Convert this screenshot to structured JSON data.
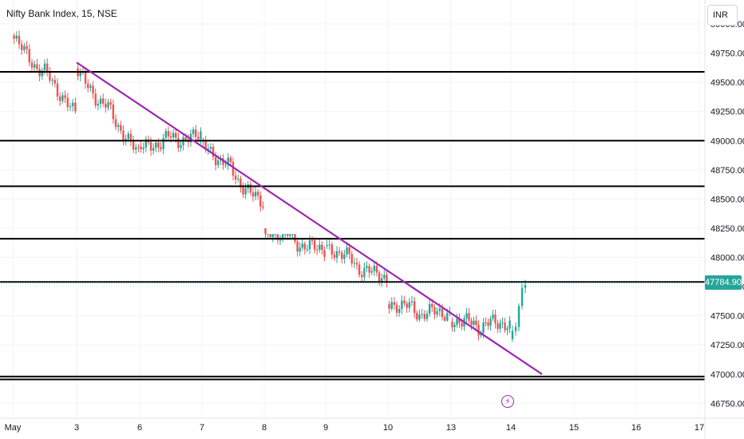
{
  "header": {
    "title": "Nifty Bank Index, 15, NSE",
    "currency": "INR"
  },
  "colors": {
    "up": "#26a69a",
    "down": "#ef5350",
    "trendline": "#9c27b0",
    "level_line": "#000000",
    "grid": "#f0f3fa",
    "axis_text": "#131722",
    "price_badge": "#26a69a"
  },
  "event_icon": "lightning-bolt-icon",
  "chart_data": {
    "type": "candlestick",
    "title": "Nifty Bank Index, 15, NSE",
    "y_axis_position": "right",
    "ylim": [
      46650,
      50000
    ],
    "y_ticks": [
      "50000.00",
      "49750.00",
      "49500.00",
      "49250.00",
      "49000.00",
      "48750.00",
      "48500.00",
      "48250.00",
      "48000.00",
      "47750.00",
      "47500.00",
      "47250.00",
      "47000.00",
      "46750.00"
    ],
    "x_tick_labels": [
      "May",
      "3",
      "6",
      "7",
      "8",
      "9",
      "10",
      "13",
      "14",
      "15",
      "16",
      "17"
    ],
    "last_price": "47784.90",
    "last_price_value": 47784.9,
    "grid": true,
    "horizontal_levels": [
      49590,
      49000,
      48610,
      48160,
      47790,
      46980,
      46955
    ],
    "trendline": {
      "start": {
        "session": "3",
        "price": 49670
      },
      "end": {
        "session": "15",
        "price": 47000
      }
    },
    "sessions": [
      {
        "label": "May",
        "open": 49900,
        "close": 49250,
        "high": 50000,
        "low": 49150
      },
      {
        "label": "3",
        "open": 49620,
        "close": 48900,
        "high": 49660,
        "low": 48750
      },
      {
        "label": "6",
        "open": 48950,
        "close": 49050,
        "high": 49250,
        "low": 48650
      },
      {
        "label": "7",
        "open": 49000,
        "close": 48450,
        "high": 49050,
        "low": 48200
      },
      {
        "label": "8",
        "open": 48250,
        "close": 48050,
        "high": 48200,
        "low": 47850
      },
      {
        "label": "9",
        "open": 48100,
        "close": 47800,
        "high": 48220,
        "low": 47700
      },
      {
        "label": "10",
        "open": 47600,
        "close": 47500,
        "high": 47850,
        "low": 47450
      },
      {
        "label": "13",
        "open": 47450,
        "close": 47420,
        "high": 47600,
        "low": 47000
      },
      {
        "label": "14",
        "open": 47300,
        "close": 47785,
        "high": 47830,
        "low": 47180
      }
    ]
  }
}
